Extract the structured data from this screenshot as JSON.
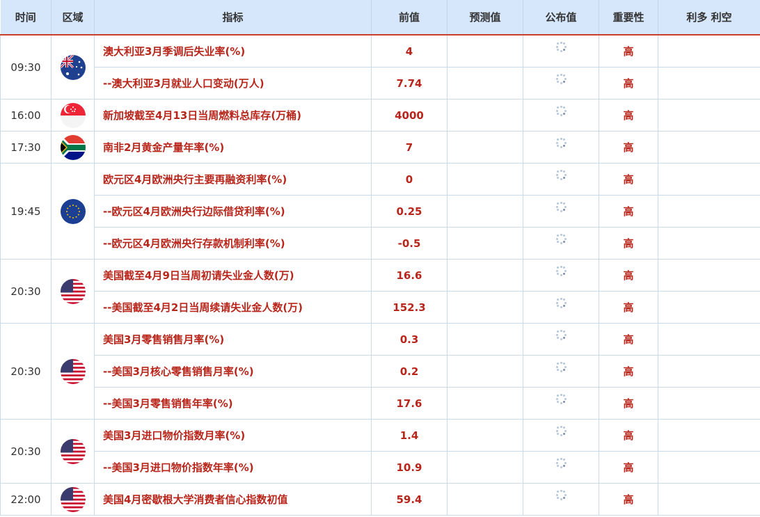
{
  "header": [
    "时间",
    "区域",
    "指标",
    "前值",
    "预测值",
    "公布值",
    "重要性",
    "利多 利空"
  ],
  "groups": [
    {
      "time": "09:30",
      "flag": "australia-flag",
      "rows": [
        {
          "name": "澳大利亚3月季调后失业率(%)",
          "prev": "4",
          "forecast": "",
          "actual": "loading-icon",
          "importance": "高",
          "impact": ""
        },
        {
          "name": "--澳大利亚3月就业人口变动(万人)",
          "prev": "7.74",
          "forecast": "",
          "actual": "loading-icon",
          "importance": "高",
          "impact": ""
        }
      ]
    },
    {
      "time": "16:00",
      "flag": "singapore-flag",
      "rows": [
        {
          "name": "新加坡截至4月13日当周燃料总库存(万桶)",
          "prev": "4000",
          "forecast": "",
          "actual": "loading-icon",
          "importance": "高",
          "impact": ""
        }
      ]
    },
    {
      "time": "17:30",
      "flag": "south-africa-flag",
      "rows": [
        {
          "name": "南非2月黄金产量年率(%)",
          "prev": "7",
          "forecast": "",
          "actual": "loading-icon",
          "importance": "高",
          "impact": ""
        }
      ]
    },
    {
      "time": "19:45",
      "flag": "eu-flag",
      "rows": [
        {
          "name": "欧元区4月欧洲央行主要再融资利率(%)",
          "prev": "0",
          "forecast": "",
          "actual": "loading-icon",
          "importance": "高",
          "impact": ""
        },
        {
          "name": "--欧元区4月欧洲央行边际借贷利率(%)",
          "prev": "0.25",
          "forecast": "",
          "actual": "loading-icon",
          "importance": "高",
          "impact": ""
        },
        {
          "name": "--欧元区4月欧洲央行存款机制利率(%)",
          "prev": "-0.5",
          "forecast": "",
          "actual": "loading-icon",
          "importance": "高",
          "impact": ""
        }
      ]
    },
    {
      "time": "20:30",
      "flag": "us-flag",
      "rows": [
        {
          "name": "美国截至4月9日当周初请失业金人数(万)",
          "prev": "16.6",
          "forecast": "",
          "actual": "loading-icon",
          "importance": "高",
          "impact": ""
        },
        {
          "name": "--美国截至4月2日当周续请失业金人数(万)",
          "prev": "152.3",
          "forecast": "",
          "actual": "loading-icon",
          "importance": "高",
          "impact": ""
        }
      ]
    },
    {
      "time": "20:30",
      "flag": "us-flag",
      "rows": [
        {
          "name": "美国3月零售销售月率(%)",
          "prev": "0.3",
          "forecast": "",
          "actual": "loading-icon",
          "importance": "高",
          "impact": ""
        },
        {
          "name": "--美国3月核心零售销售月率(%)",
          "prev": "0.2",
          "forecast": "",
          "actual": "loading-icon",
          "importance": "高",
          "impact": ""
        },
        {
          "name": "--美国3月零售销售年率(%)",
          "prev": "17.6",
          "forecast": "",
          "actual": "loading-icon",
          "importance": "高",
          "impact": ""
        }
      ]
    },
    {
      "time": "20:30",
      "flag": "us-flag",
      "rows": [
        {
          "name": "美国3月进口物价指数月率(%)",
          "prev": "1.4",
          "forecast": "",
          "actual": "loading-icon",
          "importance": "高",
          "impact": ""
        },
        {
          "name": "--美国3月进口物价指数年率(%)",
          "prev": "10.9",
          "forecast": "",
          "actual": "loading-icon",
          "importance": "高",
          "impact": ""
        }
      ]
    },
    {
      "time": "22:00",
      "flag": "us-flag",
      "rows": [
        {
          "name": "美国4月密歇根大学消费者信心指数初值",
          "prev": "59.4",
          "forecast": "",
          "actual": "loading-icon",
          "importance": "高",
          "impact": ""
        }
      ]
    }
  ]
}
